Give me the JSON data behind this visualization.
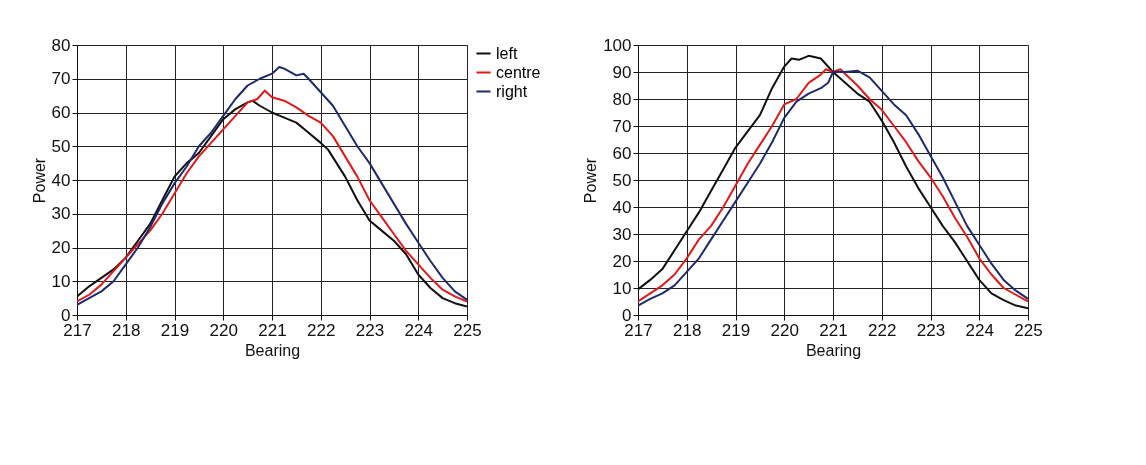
{
  "chart_data": [
    {
      "type": "line",
      "xlabel": "Bearing",
      "ylabel": "Power",
      "xlim": [
        217,
        225
      ],
      "xticks": [
        217,
        218,
        219,
        220,
        221,
        222,
        223,
        224,
        225
      ],
      "ylim": [
        0,
        80
      ],
      "yticks": [
        0,
        10,
        20,
        30,
        40,
        50,
        60,
        70,
        80
      ],
      "grid": true,
      "legend": "right",
      "line_style": "solid",
      "marker": "none",
      "series": [
        {
          "name": "left",
          "color": "#111111",
          "x": [
            217,
            217.25,
            217.5,
            217.75,
            218,
            218.25,
            218.5,
            218.75,
            219,
            219.25,
            219.5,
            219.75,
            220,
            220.25,
            220.5,
            220.6,
            220.75,
            221,
            221.25,
            221.5,
            221.75,
            222,
            222.15,
            222.5,
            222.75,
            223,
            223.25,
            223.5,
            223.75,
            224,
            224.25,
            224.5,
            224.75,
            225
          ],
          "values": [
            5.5,
            8.5,
            11,
            13.5,
            17,
            22,
            27,
            34,
            41,
            45,
            48,
            53,
            58,
            61,
            63,
            63.5,
            62,
            60,
            58.5,
            57,
            54,
            51,
            49,
            41,
            34,
            28,
            25,
            22,
            18,
            12,
            8,
            5,
            3.5,
            2.5
          ]
        },
        {
          "name": "centre",
          "color": "#e01a1a",
          "x": [
            217,
            217.25,
            217.5,
            217.75,
            218,
            218.25,
            218.5,
            218.75,
            219,
            219.25,
            219.5,
            219.75,
            220,
            220.25,
            220.5,
            220.7,
            220.85,
            221,
            221.25,
            221.5,
            221.75,
            222,
            222.25,
            222.5,
            222.75,
            223,
            223.25,
            223.5,
            223.75,
            224,
            224.25,
            224.5,
            224.75,
            225
          ],
          "values": [
            4,
            6,
            9,
            13,
            17,
            21,
            25,
            30,
            36,
            42,
            47,
            51,
            55,
            59,
            63,
            64,
            66.5,
            64.5,
            63.5,
            61.5,
            59,
            57,
            53,
            47,
            41,
            34,
            29,
            24,
            19,
            15,
            11,
            7.5,
            5.5,
            4
          ]
        },
        {
          "name": "right",
          "color": "#1f2a6e",
          "x": [
            217,
            217.25,
            217.5,
            217.75,
            218,
            218.25,
            218.5,
            218.75,
            219,
            219.25,
            219.5,
            219.75,
            220,
            220.25,
            220.5,
            220.75,
            221,
            221.15,
            221.25,
            221.5,
            221.65,
            221.75,
            222,
            222.25,
            222.5,
            222.75,
            223,
            223.25,
            223.5,
            223.75,
            224,
            224.25,
            224.5,
            224.75,
            225
          ],
          "values": [
            3,
            5,
            7,
            10,
            15,
            20,
            26,
            33,
            39,
            44,
            50,
            54,
            59,
            64,
            68,
            70,
            71.5,
            73.5,
            73,
            71,
            71.5,
            70,
            66,
            62,
            56,
            50,
            45,
            39,
            33,
            27,
            21.5,
            16,
            11,
            7,
            4.5
          ]
        }
      ]
    },
    {
      "type": "line",
      "xlabel": "Bearing",
      "ylabel": "Power",
      "xlim": [
        217,
        225
      ],
      "xticks": [
        217,
        218,
        219,
        220,
        221,
        222,
        223,
        224,
        225
      ],
      "ylim": [
        0,
        100
      ],
      "yticks": [
        0,
        10,
        20,
        30,
        40,
        50,
        60,
        70,
        80,
        90,
        100
      ],
      "grid": true,
      "line_style": "solid",
      "marker": "none",
      "series": [
        {
          "color": "#111111",
          "x": [
            217,
            217.25,
            217.5,
            217.75,
            218,
            218.25,
            218.5,
            218.75,
            219,
            219.25,
            219.5,
            219.75,
            220,
            220.15,
            220.3,
            220.5,
            220.75,
            220.9,
            221,
            221.25,
            221.5,
            221.75,
            222,
            222.25,
            222.5,
            222.75,
            223,
            223.25,
            223.5,
            223.75,
            224,
            224.25,
            224.5,
            224.75,
            225
          ],
          "values": [
            9.5,
            13,
            17,
            24,
            31,
            38,
            46,
            54,
            62,
            68,
            74,
            84,
            92,
            95,
            94.5,
            96,
            95,
            92,
            90,
            86,
            82,
            79,
            72,
            64,
            55,
            47,
            40,
            33,
            27,
            20,
            13,
            8,
            5.5,
            3.5,
            2.5
          ]
        },
        {
          "color": "#e01a1a",
          "x": [
            217,
            217.25,
            217.5,
            217.75,
            218,
            218.25,
            218.5,
            218.75,
            219,
            219.25,
            219.5,
            219.75,
            220,
            220.25,
            220.5,
            220.75,
            220.85,
            221,
            221.15,
            221.5,
            221.75,
            222,
            222.25,
            222.5,
            222.75,
            223,
            223.25,
            223.5,
            223.75,
            224,
            224.25,
            224.5,
            224.75,
            225
          ],
          "values": [
            5,
            8,
            11,
            15,
            21,
            28,
            33,
            40,
            48,
            56,
            63,
            70,
            78,
            80,
            86,
            89,
            91,
            90,
            91,
            85,
            80,
            76,
            70,
            64,
            57,
            51,
            44,
            36,
            29,
            21,
            15,
            10,
            7.5,
            5
          ]
        },
        {
          "color": "#1f2a6e",
          "x": [
            217,
            217.25,
            217.5,
            217.75,
            218,
            218.25,
            218.5,
            218.75,
            219,
            219.25,
            219.5,
            219.75,
            220,
            220.25,
            220.5,
            220.75,
            220.9,
            221,
            221.25,
            221.5,
            221.75,
            222,
            222.25,
            222.5,
            222.75,
            223,
            223.25,
            223.5,
            223.75,
            224,
            224.25,
            224.5,
            224.75,
            225
          ],
          "values": [
            3.5,
            6,
            8,
            11,
            16,
            21,
            28,
            35,
            42,
            49,
            56,
            64,
            73,
            79,
            82,
            84,
            86,
            90,
            90,
            90.5,
            88,
            83,
            78,
            74,
            67,
            59,
            51,
            42,
            33,
            26,
            19,
            13,
            9,
            6
          ]
        }
      ]
    }
  ]
}
